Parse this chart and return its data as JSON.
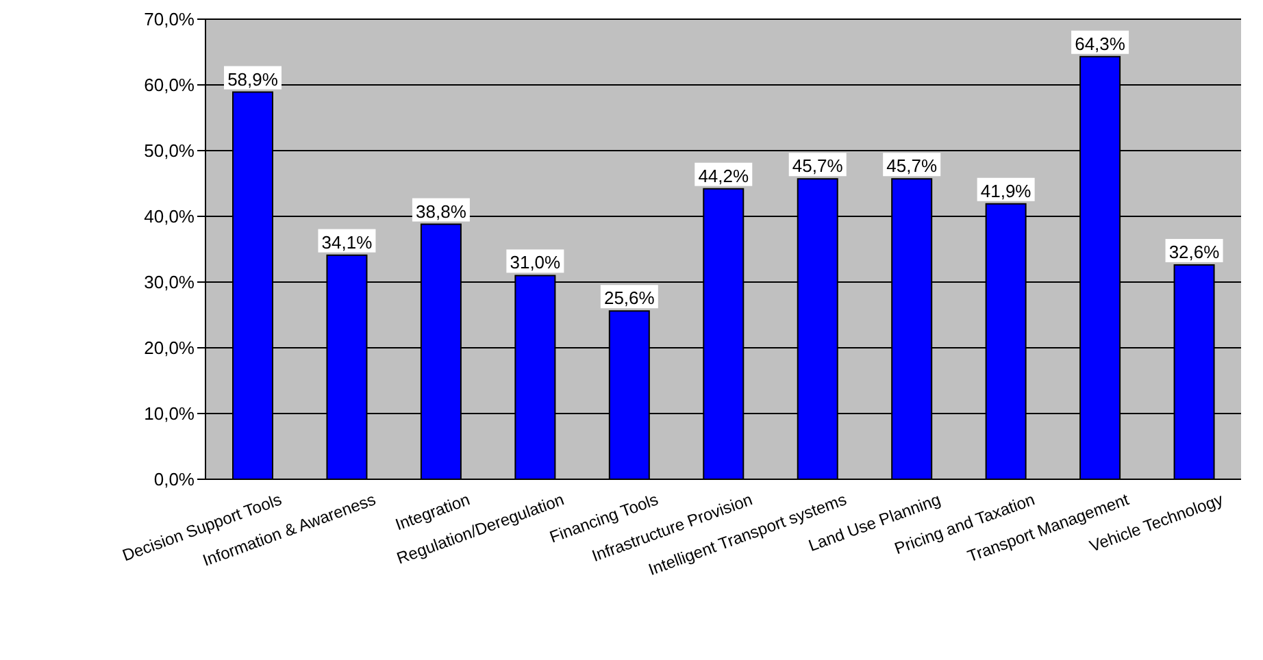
{
  "chart_data": {
    "type": "bar",
    "categories": [
      "Decision Support Tools",
      "Information & Awareness",
      "Integration",
      "Regulation/Deregulation",
      "Financing Tools",
      "Infrastructure Provision",
      "Intelligent Transport systems",
      "Land Use Planning",
      "Pricing and Taxation",
      "Transport Management",
      "Vehicle Technology"
    ],
    "values": [
      58.9,
      34.1,
      38.8,
      31.0,
      25.6,
      44.2,
      45.7,
      45.7,
      41.9,
      64.3,
      32.6
    ],
    "value_labels": [
      "58,9%",
      "34,1%",
      "38,8%",
      "31,0%",
      "25,6%",
      "44,2%",
      "45,7%",
      "45,7%",
      "41,9%",
      "64,3%",
      "32,6%"
    ],
    "color": "#0000ff",
    "ylim": [
      0,
      70
    ],
    "yticks": [
      {
        "value": 0,
        "label": "0,0%"
      },
      {
        "value": 10,
        "label": "10,0%"
      },
      {
        "value": 20,
        "label": "20,0%"
      },
      {
        "value": 30,
        "label": "30,0%"
      },
      {
        "value": 40,
        "label": "40,0%"
      },
      {
        "value": 50,
        "label": "50,0%"
      },
      {
        "value": 60,
        "label": "60,0%"
      },
      {
        "value": 70,
        "label": "70,0%"
      }
    ],
    "grid": "y"
  }
}
